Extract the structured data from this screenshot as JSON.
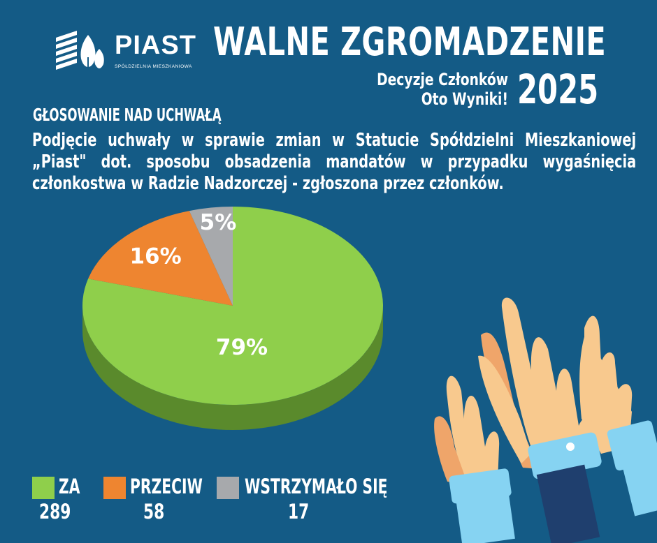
{
  "header": {
    "logo_name": "PIAST",
    "logo_subtitle": "SPÓŁDZIELNIA MIESZKANIOWA",
    "title": "WALNE ZGROMADZENIE",
    "subtitle_line1": "Decyzje Członków",
    "subtitle_line2": "Oto Wyniki!",
    "year": "2025"
  },
  "section_heading": "GŁOSOWANIE NAD UCHWAŁĄ",
  "description": "Podjęcie uchwały w sprawie zmian w Statucie Spółdzielni Mieszkaniowej „Piast\" dot. sposobu obsadzenia mandatów w przypadku wygaśnięcia członkostwa w Radzie Nadzorczej - zgłoszona przez członków.",
  "chart_data": {
    "type": "pie",
    "title": "",
    "slices": [
      {
        "name": "ZA",
        "value": 289,
        "percent_label": "79%",
        "color": "#8fcf4b",
        "side_color": "#5a8a2c"
      },
      {
        "name": "PRZECIW",
        "value": 58,
        "percent_label": "16%",
        "color": "#ee8530",
        "side_color": "#a85a1c"
      },
      {
        "name": "WSTRZYMAŁO SIĘ",
        "value": 17,
        "percent_label": "5%",
        "color": "#a7a9ac",
        "side_color": "#6f7173"
      }
    ],
    "legend_position": "bottom-left"
  },
  "colors": {
    "background": "#145b86",
    "sleeve_light": "#86d3f2",
    "sleeve_dark": "#1f3f6e",
    "skin_light": "#f8c98e",
    "skin_dark": "#efa56a"
  }
}
